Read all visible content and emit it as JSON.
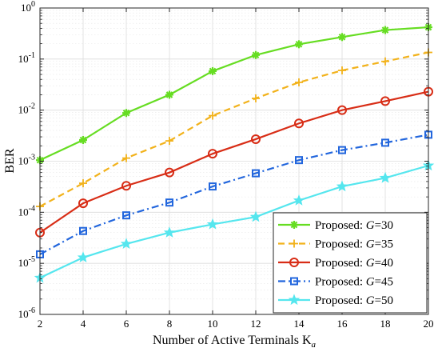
{
  "chart_data": {
    "type": "line",
    "xlabel": "Number of Active Terminals K",
    "xlabel_sub": "a",
    "ylabel": "BER",
    "x": [
      2,
      4,
      6,
      8,
      10,
      12,
      14,
      16,
      18,
      20
    ],
    "xlim": [
      2,
      20
    ],
    "ylim": [
      1e-06,
      1
    ],
    "y_scale": "log",
    "grid": true,
    "legend_placement": "bottom-right",
    "x_ticks": [
      "2",
      "4",
      "6",
      "8",
      "10",
      "12",
      "14",
      "16",
      "18",
      "20"
    ],
    "y_ticks": [
      {
        "base": "10",
        "exp": "0",
        "value": 1
      },
      {
        "base": "10",
        "exp": "-1",
        "value": 0.1
      },
      {
        "base": "10",
        "exp": "-2",
        "value": 0.01
      },
      {
        "base": "10",
        "exp": "-3",
        "value": 0.001
      },
      {
        "base": "10",
        "exp": "-4",
        "value": 0.0001
      },
      {
        "base": "10",
        "exp": "-5",
        "value": 1e-05
      },
      {
        "base": "10",
        "exp": "-6",
        "value": 1e-06
      }
    ],
    "series": [
      {
        "name": "Proposed:  G=30",
        "prefix": "Proposed:  ",
        "var": "G",
        "suffix": "=30",
        "color": "#66dd22",
        "line": "solid",
        "marker": "asterisk",
        "values": [
          0.00105,
          0.0026,
          0.0088,
          0.02,
          0.058,
          0.12,
          0.195,
          0.27,
          0.37,
          0.42
        ]
      },
      {
        "name": "Proposed:  G=35",
        "prefix": "Proposed:  ",
        "var": "G",
        "suffix": "=35",
        "color": "#f2b21b",
        "line": "dashed",
        "marker": "plus",
        "values": [
          0.00013,
          0.00037,
          0.00115,
          0.0025,
          0.0078,
          0.017,
          0.035,
          0.06,
          0.09,
          0.135
        ]
      },
      {
        "name": "Proposed:  G=40",
        "prefix": "Proposed:  ",
        "var": "G",
        "suffix": "=40",
        "color": "#d82d16",
        "line": "solid",
        "marker": "circle",
        "values": [
          4e-05,
          0.00015,
          0.00033,
          0.0006,
          0.0014,
          0.0027,
          0.0055,
          0.01,
          0.015,
          0.023
        ]
      },
      {
        "name": "Proposed:  G=45",
        "prefix": "Proposed:  ",
        "var": "G",
        "suffix": "=45",
        "color": "#2266dd",
        "line": "dashdot",
        "marker": "square",
        "values": [
          1.5e-05,
          4.3e-05,
          8.7e-05,
          0.000155,
          0.00032,
          0.00058,
          0.00105,
          0.00165,
          0.0023,
          0.0033
        ]
      },
      {
        "name": "Proposed:  G=50",
        "prefix": "Proposed:  ",
        "var": "G",
        "suffix": "=50",
        "color": "#55e6ee",
        "line": "solid",
        "marker": "star",
        "values": [
          5.2e-06,
          1.3e-05,
          2.4e-05,
          4e-05,
          5.8e-05,
          8.1e-05,
          0.00017,
          0.00032,
          0.00047,
          0.00082
        ]
      }
    ]
  }
}
